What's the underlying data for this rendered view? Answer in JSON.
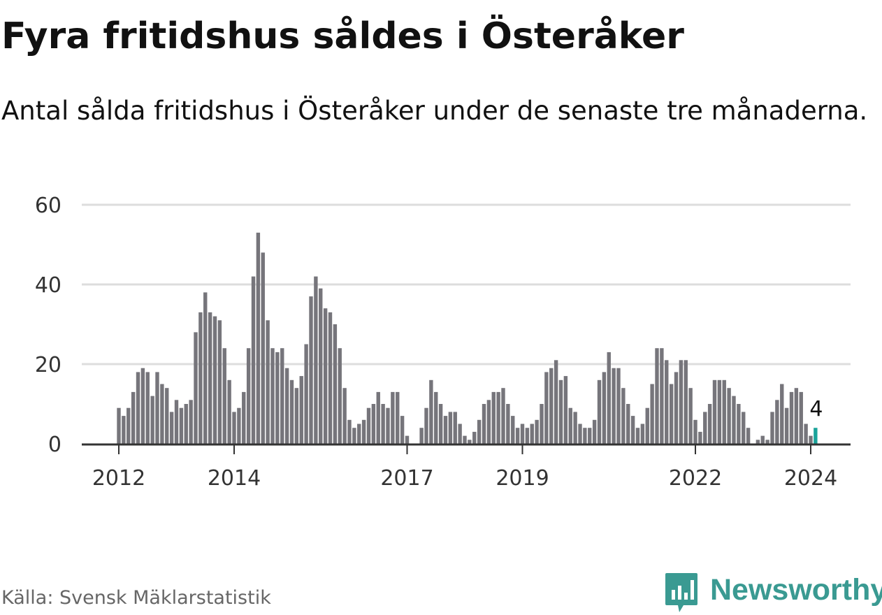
{
  "title": "Fyra fritidshus såldes i Österåker",
  "subtitle": "Antal sålda fritidshus i Österåker under de senaste tre månaderna.",
  "source": "Källa: Svensk Mäklarstatistik",
  "brand": "Newsworthy",
  "colors": {
    "bar": "#76757b",
    "highlight": "#1aa39a",
    "grid": "#dddddd",
    "axis": "#333333",
    "brand": "#3a9a92"
  },
  "chart_data": {
    "type": "bar",
    "title": "Fyra fritidshus såldes i Österåker",
    "xlabel": "",
    "ylabel": "",
    "ylim": [
      0,
      60
    ],
    "yticks": [
      0,
      20,
      40,
      60
    ],
    "xtick_labels": [
      {
        "label": "2012",
        "index": 0
      },
      {
        "label": "2014",
        "index": 24
      },
      {
        "label": "2017",
        "index": 60
      },
      {
        "label": "2019",
        "index": 84
      },
      {
        "label": "2022",
        "index": 120
      },
      {
        "label": "2024",
        "index": 144
      }
    ],
    "start": "2012-01",
    "end": "2024-01",
    "values": [
      9,
      7,
      9,
      13,
      18,
      19,
      18,
      12,
      18,
      15,
      14,
      8,
      11,
      9,
      10,
      11,
      28,
      33,
      38,
      33,
      32,
      31,
      24,
      16,
      8,
      9,
      13,
      24,
      42,
      53,
      48,
      31,
      24,
      23,
      24,
      19,
      16,
      14,
      17,
      25,
      37,
      42,
      39,
      34,
      33,
      30,
      24,
      14,
      6,
      4,
      5,
      6,
      9,
      10,
      13,
      10,
      9,
      13,
      13,
      7,
      2,
      0,
      0,
      4,
      9,
      16,
      13,
      10,
      7,
      8,
      8,
      5,
      2,
      1,
      3,
      6,
      10,
      11,
      13,
      13,
      14,
      10,
      7,
      4,
      5,
      4,
      5,
      6,
      10,
      18,
      19,
      21,
      16,
      17,
      9,
      8,
      5,
      4,
      4,
      6,
      16,
      18,
      23,
      19,
      19,
      14,
      10,
      7,
      4,
      5,
      9,
      15,
      24,
      24,
      21,
      15,
      18,
      21,
      21,
      14,
      6,
      3,
      8,
      10,
      16,
      16,
      16,
      14,
      12,
      10,
      8,
      4,
      0,
      1,
      2,
      1,
      8,
      11,
      15,
      9,
      13,
      14,
      13,
      5,
      2,
      4
    ],
    "highlight_index": 145,
    "annotation": {
      "index": 145,
      "text": "4"
    }
  }
}
